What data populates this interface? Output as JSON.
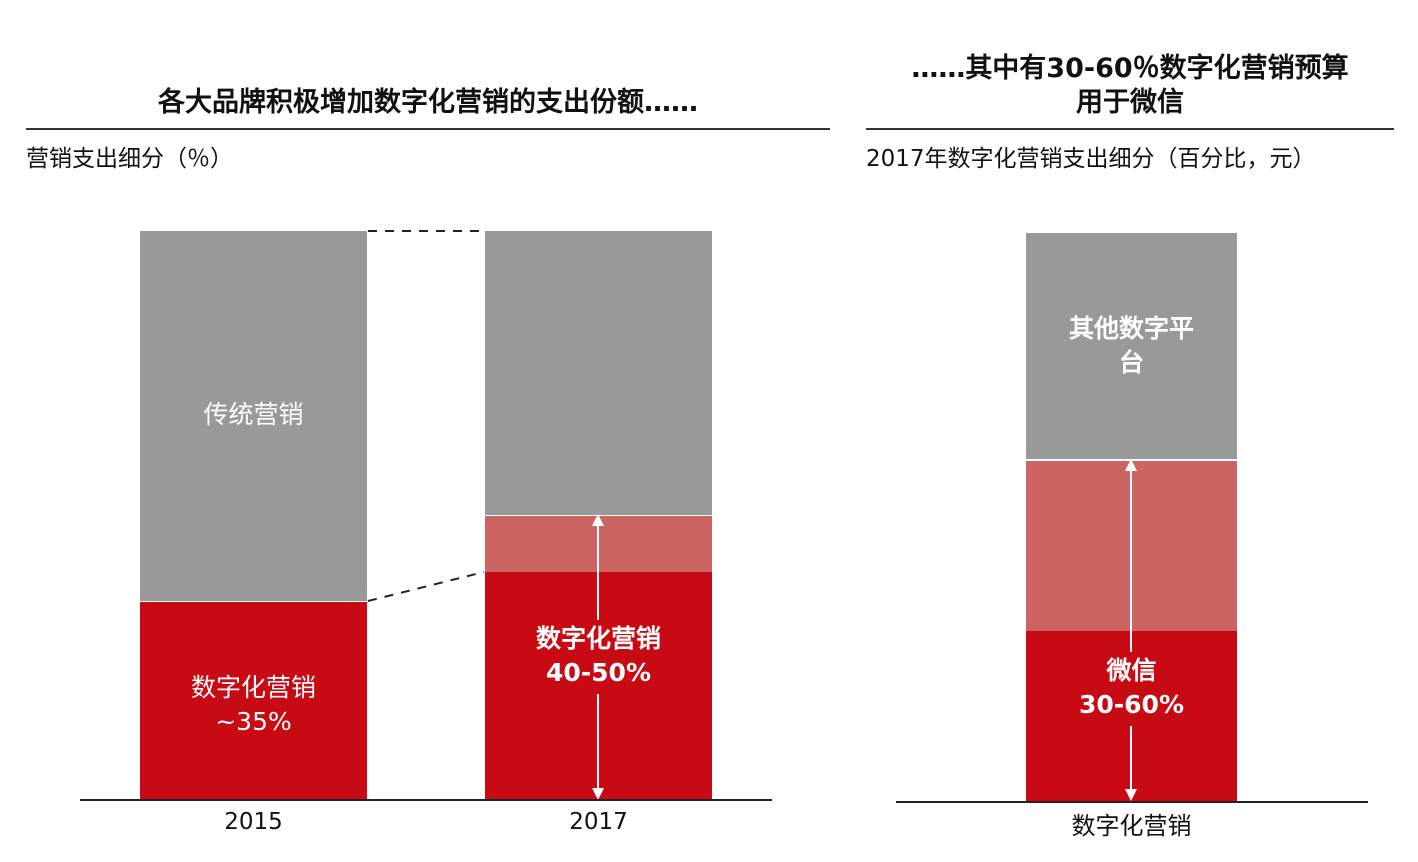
{
  "left_panel": {
    "title": "各大品牌积极增加数字化营销的支出份额……",
    "subtitle": "营销支出细分（％）"
  },
  "right_panel": {
    "title_line1": "……其中有30-60％数字化营销预算",
    "title_line2": "用于微信",
    "subtitle": "2017年数字化营销支出细分（百分比，元）"
  },
  "colors": {
    "gray": "#999999",
    "red": "#c80a14",
    "light_red": "#cc6464",
    "axis": "#222222"
  },
  "chart_data": [
    {
      "type": "bar",
      "stacked": true,
      "categories": [
        "2015",
        "2017"
      ],
      "ylim": [
        0,
        100
      ],
      "labels": {
        "traditional": "传统营销",
        "digital_2015_line1": "数字化营销",
        "digital_2015_line2": "~35%",
        "digital_2017_line1": "数字化营销",
        "digital_2017_line2": "40-50%"
      },
      "segments": {
        "2015": {
          "digital": 35,
          "traditional": 65
        },
        "2017": {
          "digital_min": 40,
          "digital_range_top": 50,
          "traditional": 50
        }
      }
    },
    {
      "type": "bar",
      "stacked": true,
      "categories": [
        "数字化营销"
      ],
      "ylim": [
        0,
        100
      ],
      "labels": {
        "other_line1": "其他数字平",
        "other_line2": "台",
        "wechat_line1": "微信",
        "wechat_line2": "30-60%"
      },
      "segments": {
        "wechat_min": 30,
        "wechat_max": 60,
        "other": 40
      }
    }
  ]
}
